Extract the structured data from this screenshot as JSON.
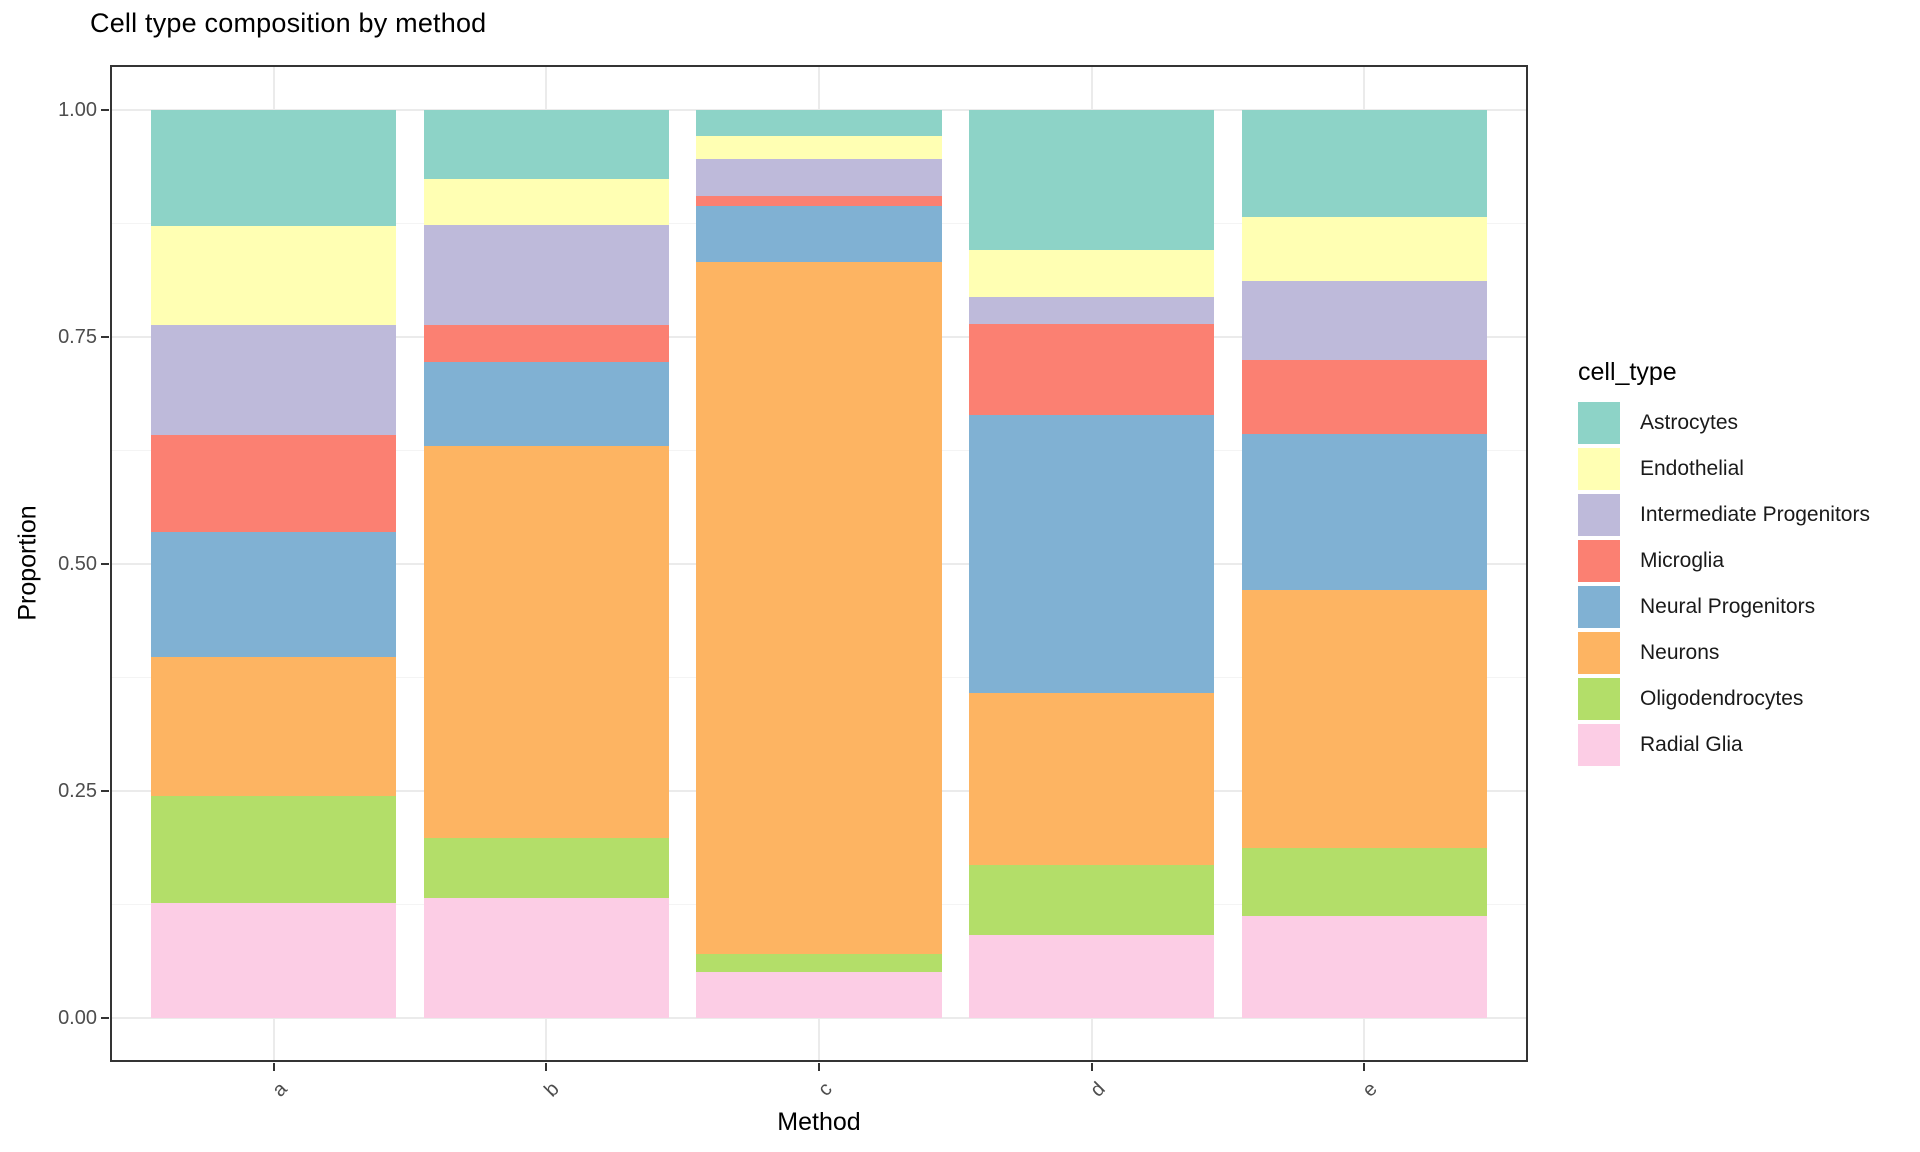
{
  "chart_data": {
    "type": "bar",
    "stacked": true,
    "normalized": true,
    "title": "Cell type composition by method",
    "xlabel": "Method",
    "ylabel": "Proportion",
    "legend_title": "cell_type",
    "legend_position": "right",
    "grid": true,
    "categories": [
      "a",
      "b",
      "c",
      "d",
      "e"
    ],
    "ylim": [
      0,
      1
    ],
    "y_ticks": [
      "0.00",
      "0.25",
      "0.50",
      "0.75",
      "1.00"
    ],
    "y_tick_values": [
      0,
      0.25,
      0.5,
      0.75,
      1.0
    ],
    "y_minor_tick_values": [
      0.125,
      0.375,
      0.625,
      0.875
    ],
    "series": [
      {
        "name": "Astrocytes",
        "color": "#8DD3C7",
        "values": [
          0.128,
          0.076,
          0.029,
          0.154,
          0.118
        ]
      },
      {
        "name": "Endothelial",
        "color": "#FFFFB3",
        "values": [
          0.109,
          0.051,
          0.025,
          0.052,
          0.07
        ]
      },
      {
        "name": "Intermediate Progenitors",
        "color": "#BEBADA",
        "values": [
          0.121,
          0.11,
          0.041,
          0.03,
          0.087
        ]
      },
      {
        "name": "Microglia",
        "color": "#FB8072",
        "values": [
          0.107,
          0.04,
          0.011,
          0.1,
          0.082
        ]
      },
      {
        "name": "Neural Progenitors",
        "color": "#80B1D3",
        "values": [
          0.137,
          0.093,
          0.061,
          0.306,
          0.172
        ]
      },
      {
        "name": "Neurons",
        "color": "#FDB462",
        "values": [
          0.153,
          0.432,
          0.762,
          0.19,
          0.284
        ]
      },
      {
        "name": "Oligodendrocytes",
        "color": "#B3DE69",
        "values": [
          0.118,
          0.066,
          0.02,
          0.077,
          0.075
        ]
      },
      {
        "name": "Radial Glia",
        "color": "#FCCDE5",
        "values": [
          0.127,
          0.132,
          0.051,
          0.091,
          0.112
        ]
      }
    ],
    "stack_order_bottom_to_top": [
      "Radial Glia",
      "Oligodendrocytes",
      "Neurons",
      "Neural Progenitors",
      "Microglia",
      "Intermediate Progenitors",
      "Endothelial",
      "Astrocytes"
    ]
  }
}
